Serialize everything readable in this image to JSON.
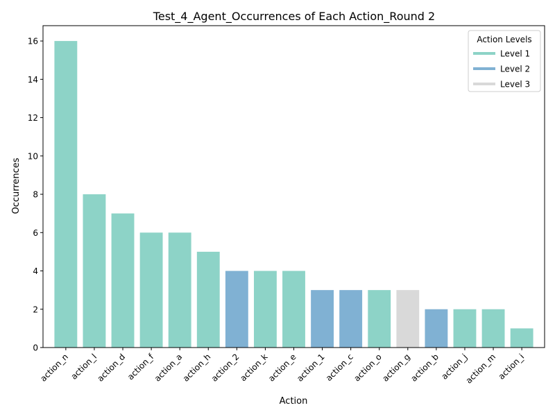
{
  "chart_data": {
    "type": "bar",
    "title": "Test_4_Agent_Occurrences of Each Action_Round 2",
    "xlabel": "Action",
    "ylabel": "Occurrences",
    "ylim": [
      0,
      16.8
    ],
    "yticks": [
      0,
      2,
      4,
      6,
      8,
      10,
      12,
      14,
      16
    ],
    "grid": false,
    "categories": [
      "action_n",
      "action_l",
      "action_d",
      "action_f",
      "action_a",
      "action_h",
      "action_2",
      "action_k",
      "action_e",
      "action_1",
      "action_c",
      "action_o",
      "action_g",
      "action_b",
      "action_j",
      "action_m",
      "action_i"
    ],
    "values": [
      16,
      8,
      7,
      6,
      6,
      5,
      4,
      4,
      4,
      3,
      3,
      3,
      3,
      2,
      2,
      2,
      1
    ],
    "levels": [
      "Level 1",
      "Level 1",
      "Level 1",
      "Level 1",
      "Level 1",
      "Level 1",
      "Level 2",
      "Level 1",
      "Level 1",
      "Level 2",
      "Level 2",
      "Level 1",
      "Level 3",
      "Level 2",
      "Level 1",
      "Level 1",
      "Level 1"
    ],
    "legend": {
      "title": "Action Levels",
      "placement": "top-right",
      "entries": [
        {
          "label": "Level 1",
          "color": "#8dd3c7"
        },
        {
          "label": "Level 2",
          "color": "#80b1d3"
        },
        {
          "label": "Level 3",
          "color": "#d9d9d9"
        }
      ]
    }
  }
}
